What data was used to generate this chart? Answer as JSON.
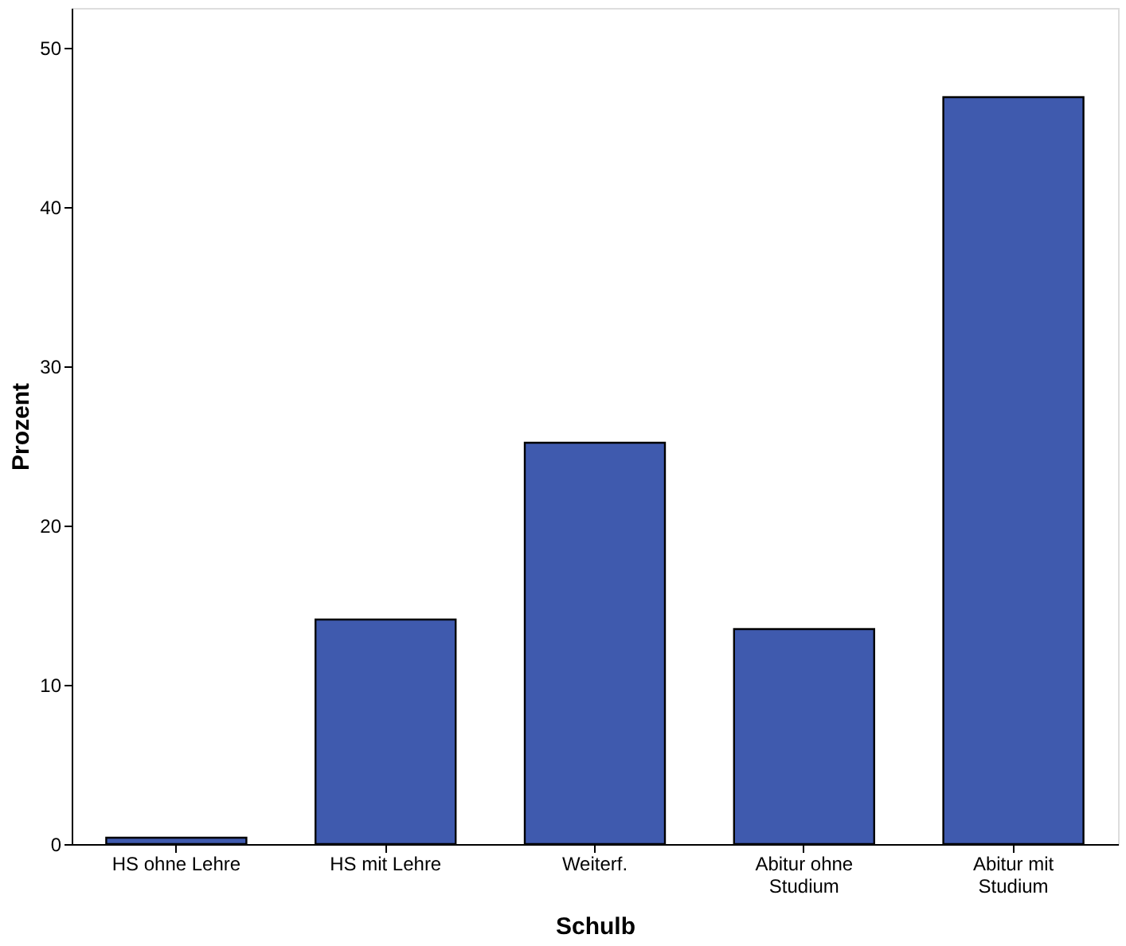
{
  "chart_data": {
    "type": "bar",
    "xlabel": "Schulb",
    "ylabel": "Prozent",
    "categories": [
      "HS ohne Lehre",
      "HS mit Lehre",
      "Weiterf.",
      "Abitur ohne Studium",
      "Abitur mit Studium"
    ],
    "values": [
      0.4,
      14.1,
      25.2,
      13.5,
      46.9
    ],
    "color": "#3f5aae",
    "ylim": [
      0,
      52.5
    ],
    "yticks": [
      0,
      10,
      20,
      30,
      40,
      50
    ],
    "grid": false
  }
}
